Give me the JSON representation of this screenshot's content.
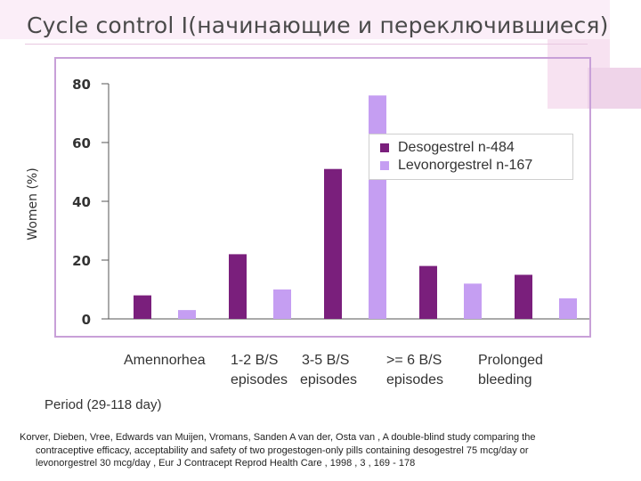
{
  "title": "Cycle control I(начинающие и переключившиеся)",
  "citation": {
    "line1": "Korver, Dieben, Vree, Edwards van Muijen, Vromans, Sanden A van der, Osta van , A double-blind study comparing the",
    "line2": "contraceptive efficacy, acceptability and safety of two progestogen-only pills containing desogestrel 75 mcg/day or",
    "line3": "levonorgestrel 30 mcg/day , Eur J Contracept Reprod Health Care , 1998 , 3 , 169 - 178"
  },
  "colors": {
    "desogestrel": "#7a1f7c",
    "levonorgestrel": "#c59ef2",
    "deco": "#f1d8ec",
    "frame": "#c8a0d8"
  },
  "chart_data": {
    "type": "bar",
    "title": "Cycle control I(начинающие и переключившиеся)",
    "ylabel": "Women (%)",
    "xlabel": "Period (29-118 day)",
    "ylim": [
      0,
      80
    ],
    "yticks": [
      "0",
      "20",
      "40",
      "60",
      "80"
    ],
    "ytick_values": [
      0,
      20,
      40,
      60,
      80
    ],
    "grid": false,
    "legend_position": "top-right",
    "categories": [
      [
        "Amennorhea"
      ],
      [
        "1-2 B/S",
        "episodes"
      ],
      [
        "3-5 B/S",
        "episodes"
      ],
      [
        ">= 6 B/S",
        "episodes"
      ],
      [
        "Prolonged",
        "bleeding"
      ]
    ],
    "series": [
      {
        "name": "Desogestrel n-484",
        "values": [
          8,
          22,
          51,
          18,
          15
        ]
      },
      {
        "name": "Levonorgestrel n-167",
        "values": [
          3,
          10,
          76,
          12,
          7
        ]
      }
    ]
  }
}
